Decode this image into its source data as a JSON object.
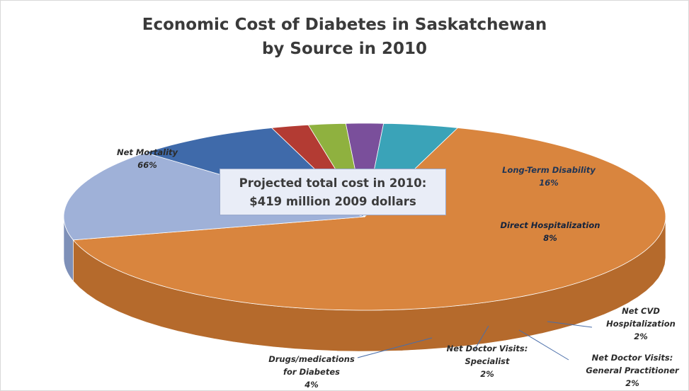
{
  "chart_data": {
    "type": "pie",
    "title_line1": "Economic Cost of Diabetes in Saskatchewan",
    "title_line2": "by Source in 2010",
    "callout_line1": "Projected total cost in 2010:",
    "callout_line2": "$419 million 2009 dollars",
    "slices": [
      {
        "label_lines": [
          "Net Mortality"
        ],
        "pct_label": "66%",
        "value": 66,
        "color": "#d9853e",
        "side": "#b56a2c"
      },
      {
        "label_lines": [
          "Long-Term Disability"
        ],
        "pct_label": "16%",
        "value": 16,
        "color": "#9fb1d8",
        "side": "#7e90b8"
      },
      {
        "label_lines": [
          "Direct Hospitalization"
        ],
        "pct_label": "8%",
        "value": 8,
        "color": "#3f6aaa",
        "side": "#243e63"
      },
      {
        "label_lines": [
          "Net CVD",
          "Hospitalization"
        ],
        "pct_label": "2%",
        "value": 2,
        "color": "#b33b33",
        "side": "#6e1f1b"
      },
      {
        "label_lines": [
          "Net Doctor Visits:",
          "General Practitioner"
        ],
        "pct_label": "2%",
        "value": 2,
        "color": "#8fb13f",
        "side": "#4f6a1f"
      },
      {
        "label_lines": [
          "Net Doctor Visits:",
          "Specialist"
        ],
        "pct_label": "2%",
        "value": 2,
        "color": "#7a4f9b",
        "side": "#3f2659"
      },
      {
        "label_lines": [
          "Drugs/medications",
          "for Diabetes"
        ],
        "pct_label": "4%",
        "value": 4,
        "color": "#3aa3b8",
        "side": "#207181"
      }
    ]
  }
}
